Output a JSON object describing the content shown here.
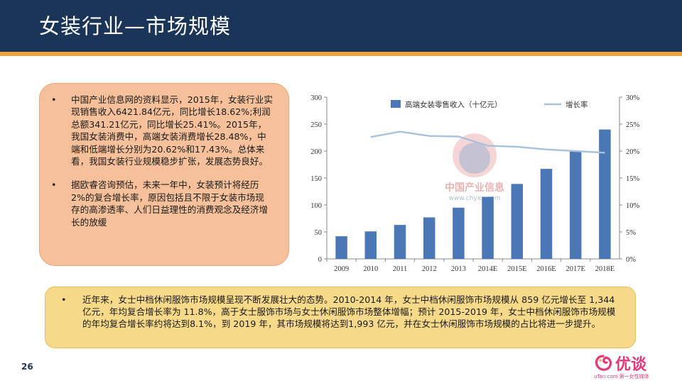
{
  "header": {
    "title": "女装行业—市场规模"
  },
  "left_box": {
    "bullet": "•",
    "paragraphs": [
      "中国产业信息网的资料显示，2015年，女装行业实现销售收入6421.84亿元，同比增长18.62%;利润总额341.21亿元，同比增长25.41%。2015年，我国女装消费中，高端女装消费增长28.48%，中端和低端增长分别为20.62%和17.43%。总体来看，我国女装行业规模稳步扩张，发展态势良好。",
      "据欧睿咨询预估，未来一年中，女装预计将经历2%的复合增长率，原因包括且不限于女装市场现存的高渗透率、人们日益理性的消费观念及经济增长的放缓"
    ]
  },
  "bottom_box": {
    "bullet": "•",
    "text": "近年来，女士中档休闲服饰市场规模呈现不断发展壮大的态势。2010-2014 年，女士中档休闲服饰市场规模从 859 亿元增长至 1,344 亿元，年均复合增长率为 11.8%，高于女士服饰市场与女士休闲服饰市场整体增幅；预计 2015-2019 年，女士中档休闲服饰市场规模的年均复合增长率约将达到8.1%，到 2019 年，其市场规模将达到1,993 亿元，并在女士休闲服饰市场规模的占比将进一步提升。"
  },
  "watermark": {
    "name": "中国产业信息",
    "url": "www.chyxx.com"
  },
  "page_number": "26",
  "brand": {
    "name": "优谈",
    "sub": "uTan.com 第一女性媒体"
  },
  "chart_data": {
    "type": "bar",
    "categories": [
      "2009",
      "2010",
      "2011",
      "2012",
      "2013",
      "2014E",
      "2015E",
      "2016E",
      "2017E",
      "2018E"
    ],
    "series": [
      {
        "name": "高端女装零售收入（十亿元）",
        "type": "bar",
        "color": "#4a77b5",
        "values": [
          42,
          51,
          63,
          77,
          95,
          115,
          139,
          167,
          199,
          240
        ]
      },
      {
        "name": "增长率",
        "type": "line",
        "axis": "right",
        "color": "#a8c1dc",
        "values": [
          null,
          22.6,
          23.6,
          22.8,
          22.7,
          21.0,
          20.8,
          20.3,
          20.0,
          19.7
        ]
      }
    ],
    "ylim": [
      0,
      300
    ],
    "yticks": [
      "0",
      "50",
      "100",
      "150",
      "200",
      "250",
      "300"
    ],
    "y2lim": [
      0,
      30
    ],
    "y2ticks": [
      "0%",
      "5%",
      "10%",
      "15%",
      "20%",
      "25%",
      "30%"
    ],
    "legend": "top"
  }
}
